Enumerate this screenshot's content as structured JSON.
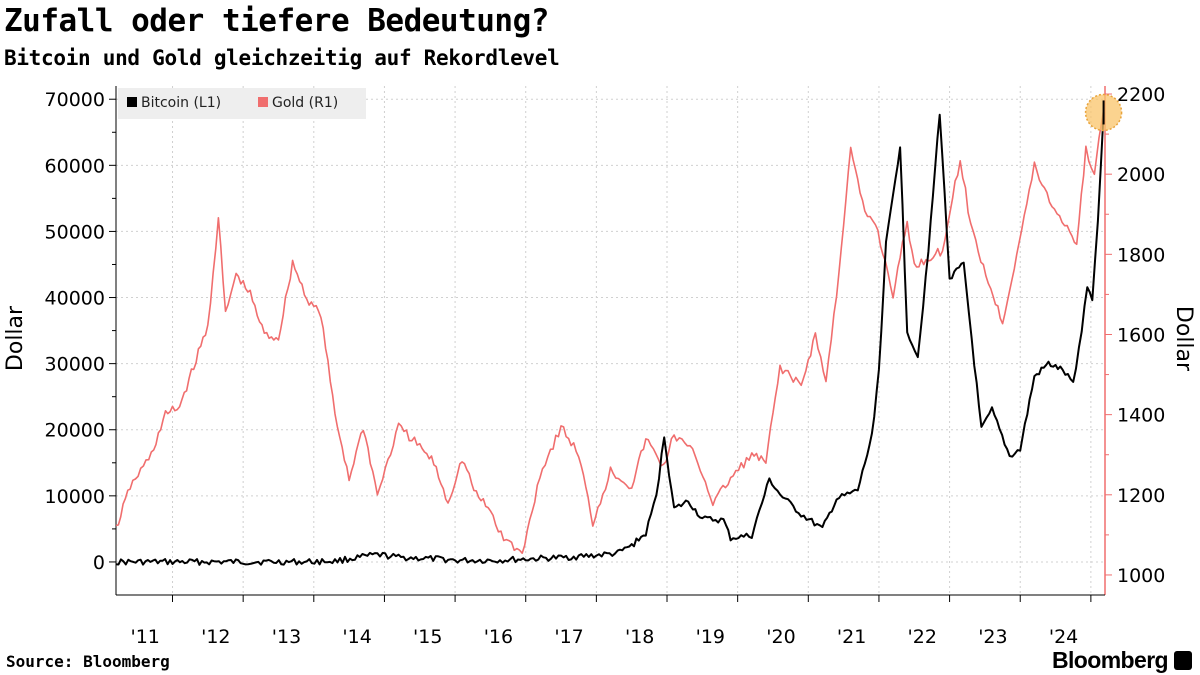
{
  "chart_data": {
    "type": "line",
    "title": "Zufall oder tiefere Bedeutung?",
    "subtitle": "Bitcoin und Gold gleichzeitig auf Rekordlevel",
    "source": "Source: Bloomberg",
    "brand": "Bloomberg",
    "x_range": [
      2010.2,
      2024.2
    ],
    "x_tick_labels": [
      {
        "label": "'11",
        "year": 2011
      },
      {
        "label": "'12",
        "year": 2012
      },
      {
        "label": "'13",
        "year": 2013
      },
      {
        "label": "'14",
        "year": 2014
      },
      {
        "label": "'15",
        "year": 2015
      },
      {
        "label": "'16",
        "year": 2016
      },
      {
        "label": "'17",
        "year": 2017
      },
      {
        "label": "'18",
        "year": 2018
      },
      {
        "label": "'19",
        "year": 2019
      },
      {
        "label": "'20",
        "year": 2020
      },
      {
        "label": "'21",
        "year": 2021
      },
      {
        "label": "'22",
        "year": 2022
      },
      {
        "label": "'23",
        "year": 2023
      },
      {
        "label": "'24",
        "year": 2024
      }
    ],
    "left_axis": {
      "label": "Dollar",
      "ylim": [
        -5000,
        72000
      ],
      "ticks": [
        0,
        10000,
        20000,
        30000,
        40000,
        50000,
        60000,
        70000
      ],
      "tick_labels": [
        "0",
        "10000",
        "20000",
        "30000",
        "40000",
        "50000",
        "60000",
        "70000"
      ]
    },
    "right_axis": {
      "label": "Dollar",
      "ylim": [
        950,
        2220
      ],
      "ticks": [
        1000,
        1200,
        1400,
        1600,
        1800,
        2000,
        2200
      ],
      "tick_labels": [
        "1000",
        "1200",
        "1400",
        "1600",
        "1800",
        "2000",
        "2200"
      ],
      "color": "#f06e6e"
    },
    "legend": [
      {
        "name": "Bitcoin (L1)",
        "color": "#000000"
      },
      {
        "name": "Gold (R1)",
        "color": "#f06e6e"
      }
    ],
    "series": [
      {
        "name": "Bitcoin (L1)",
        "axis": "left",
        "color": "#000000",
        "points": [
          [
            2010.2,
            0
          ],
          [
            2011.0,
            0
          ],
          [
            2011.45,
            20
          ],
          [
            2012.0,
            5
          ],
          [
            2012.9,
            13
          ],
          [
            2013.3,
            130
          ],
          [
            2013.9,
            1100
          ],
          [
            2014.2,
            700
          ],
          [
            2014.9,
            350
          ],
          [
            2015.0,
            220
          ],
          [
            2015.6,
            250
          ],
          [
            2016.0,
            430
          ],
          [
            2016.5,
            650
          ],
          [
            2017.0,
            1000
          ],
          [
            2017.3,
            1300
          ],
          [
            2017.5,
            2500
          ],
          [
            2017.7,
            4300
          ],
          [
            2017.85,
            10000
          ],
          [
            2017.96,
            19000
          ],
          [
            2018.1,
            8000
          ],
          [
            2018.3,
            9200
          ],
          [
            2018.5,
            6500
          ],
          [
            2018.8,
            6300
          ],
          [
            2018.9,
            3600
          ],
          [
            2019.2,
            4000
          ],
          [
            2019.45,
            12500
          ],
          [
            2019.6,
            10200
          ],
          [
            2019.9,
            7200
          ],
          [
            2020.2,
            5000
          ],
          [
            2020.4,
            9500
          ],
          [
            2020.7,
            10800
          ],
          [
            2020.9,
            19000
          ],
          [
            2021.0,
            29000
          ],
          [
            2021.1,
            48000
          ],
          [
            2021.3,
            63000
          ],
          [
            2021.4,
            35000
          ],
          [
            2021.55,
            31000
          ],
          [
            2021.7,
            47000
          ],
          [
            2021.86,
            68000
          ],
          [
            2022.0,
            43000
          ],
          [
            2022.2,
            45000
          ],
          [
            2022.35,
            30000
          ],
          [
            2022.45,
            20000
          ],
          [
            2022.6,
            23000
          ],
          [
            2022.85,
            16000
          ],
          [
            2023.0,
            17000
          ],
          [
            2023.2,
            28000
          ],
          [
            2023.4,
            30000
          ],
          [
            2023.6,
            29000
          ],
          [
            2023.75,
            27000
          ],
          [
            2023.87,
            35000
          ],
          [
            2023.95,
            42000
          ],
          [
            2024.02,
            39500
          ],
          [
            2024.1,
            52000
          ],
          [
            2024.18,
            68000
          ]
        ]
      },
      {
        "name": "Gold (R1)",
        "axis": "right",
        "color": "#f06e6e",
        "points": [
          [
            2010.2,
            1115
          ],
          [
            2010.4,
            1220
          ],
          [
            2010.7,
            1300
          ],
          [
            2010.9,
            1400
          ],
          [
            2011.1,
            1420
          ],
          [
            2011.3,
            1520
          ],
          [
            2011.5,
            1620
          ],
          [
            2011.65,
            1890
          ],
          [
            2011.75,
            1650
          ],
          [
            2011.9,
            1750
          ],
          [
            2012.1,
            1700
          ],
          [
            2012.3,
            1600
          ],
          [
            2012.5,
            1590
          ],
          [
            2012.7,
            1780
          ],
          [
            2012.9,
            1690
          ],
          [
            2013.1,
            1650
          ],
          [
            2013.3,
            1400
          ],
          [
            2013.5,
            1240
          ],
          [
            2013.7,
            1370
          ],
          [
            2013.9,
            1200
          ],
          [
            2014.2,
            1370
          ],
          [
            2014.5,
            1320
          ],
          [
            2014.7,
            1280
          ],
          [
            2014.9,
            1180
          ],
          [
            2015.1,
            1290
          ],
          [
            2015.3,
            1200
          ],
          [
            2015.5,
            1160
          ],
          [
            2015.65,
            1100
          ],
          [
            2015.95,
            1050
          ],
          [
            2016.2,
            1250
          ],
          [
            2016.5,
            1370
          ],
          [
            2016.75,
            1300
          ],
          [
            2016.95,
            1130
          ],
          [
            2017.2,
            1260
          ],
          [
            2017.5,
            1220
          ],
          [
            2017.7,
            1340
          ],
          [
            2017.95,
            1270
          ],
          [
            2018.1,
            1350
          ],
          [
            2018.4,
            1300
          ],
          [
            2018.65,
            1180
          ],
          [
            2018.9,
            1240
          ],
          [
            2019.2,
            1300
          ],
          [
            2019.4,
            1280
          ],
          [
            2019.6,
            1520
          ],
          [
            2019.9,
            1470
          ],
          [
            2020.1,
            1600
          ],
          [
            2020.25,
            1480
          ],
          [
            2020.4,
            1700
          ],
          [
            2020.6,
            2060
          ],
          [
            2020.8,
            1900
          ],
          [
            2020.95,
            1880
          ],
          [
            2021.2,
            1700
          ],
          [
            2021.4,
            1880
          ],
          [
            2021.5,
            1770
          ],
          [
            2021.7,
            1790
          ],
          [
            2021.9,
            1810
          ],
          [
            2022.15,
            2040
          ],
          [
            2022.3,
            1870
          ],
          [
            2022.55,
            1730
          ],
          [
            2022.75,
            1630
          ],
          [
            2022.95,
            1800
          ],
          [
            2023.2,
            2020
          ],
          [
            2023.45,
            1920
          ],
          [
            2023.7,
            1860
          ],
          [
            2023.8,
            1825
          ],
          [
            2023.93,
            2060
          ],
          [
            2024.05,
            2000
          ],
          [
            2024.18,
            2160
          ]
        ]
      }
    ],
    "annotations": [
      {
        "type": "highlight-circle",
        "x": 2024.18,
        "series": "Bitcoin (L1)",
        "y": 68000,
        "color": "#f9c46a"
      }
    ]
  }
}
